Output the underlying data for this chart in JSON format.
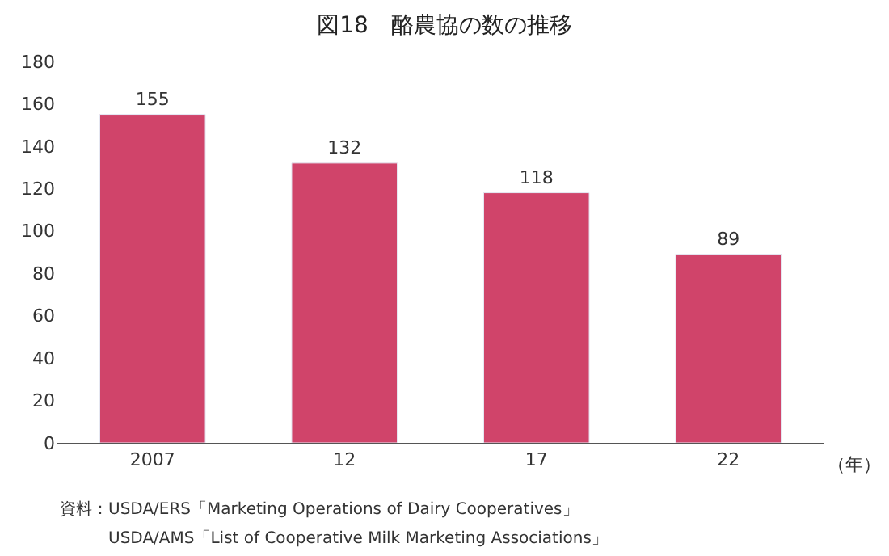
{
  "chart_data": {
    "type": "bar",
    "title": "図18　酪農協の数の推移",
    "categories": [
      "2007",
      "12",
      "17",
      "22"
    ],
    "values": [
      155,
      132,
      118,
      89
    ],
    "color": "#d0446a",
    "xlabel": "（年）",
    "ylim": [
      0,
      180
    ],
    "yticks": [
      0,
      20,
      40,
      60,
      80,
      100,
      120,
      140,
      160,
      180
    ],
    "data_labels": true,
    "annotations": [
      "資料：USDA/ERS「Marketing Operations of Dairy Cooperatives」",
      "　　　USDA/AMS「List of Cooperative Milk Marketing Associations」"
    ]
  }
}
